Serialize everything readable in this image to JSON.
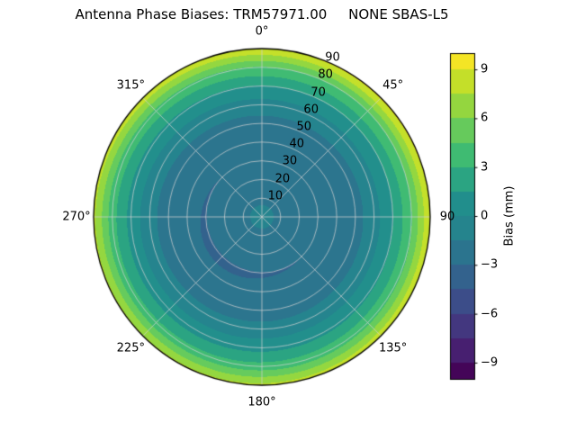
{
  "figure": {
    "background": "#ffffff"
  },
  "chart_data": {
    "type": "heatmap",
    "projection": "polar",
    "title": "Antenna Phase Biases: TRM57971.00     NONE SBAS-L5",
    "grid": true,
    "azimuth_ticks": [
      {
        "angle_deg": 0,
        "label": "0°"
      },
      {
        "angle_deg": 45,
        "label": "45°"
      },
      {
        "angle_deg": 90,
        "label": "90"
      },
      {
        "angle_deg": 135,
        "label": "135°"
      },
      {
        "angle_deg": 180,
        "label": "180°"
      },
      {
        "angle_deg": 225,
        "label": "225°"
      },
      {
        "angle_deg": 270,
        "label": "270°"
      },
      {
        "angle_deg": 315,
        "label": "315°"
      }
    ],
    "radial_ticks": [
      {
        "zenith_deg": 10,
        "label": "10"
      },
      {
        "zenith_deg": 20,
        "label": "20"
      },
      {
        "zenith_deg": 30,
        "label": "30"
      },
      {
        "zenith_deg": 40,
        "label": "40"
      },
      {
        "zenith_deg": 50,
        "label": "50"
      },
      {
        "zenith_deg": 60,
        "label": "60"
      },
      {
        "zenith_deg": 70,
        "label": "70"
      },
      {
        "zenith_deg": 80,
        "label": "80"
      },
      {
        "zenith_deg": 90,
        "label": "90"
      }
    ],
    "radial_label_azimuth_deg": 22.5,
    "radial_range": [
      0,
      90
    ],
    "colorbar": {
      "label": "Bias (mm)",
      "ticks": [
        {
          "value": 9,
          "label": "9"
        },
        {
          "value": 6,
          "label": "6"
        },
        {
          "value": 3,
          "label": "3"
        },
        {
          "value": 0,
          "label": "0"
        },
        {
          "value": -3,
          "label": "−3"
        },
        {
          "value": -6,
          "label": "−6"
        },
        {
          "value": -9,
          "label": "−9"
        }
      ],
      "vmin": -10,
      "vmax": 10,
      "level_step_mm": 1.5,
      "colormap": "viridis",
      "colormap_colors": [
        "#440154",
        "#482878",
        "#3e4989",
        "#31688e",
        "#26828e",
        "#21918c",
        "#35b779",
        "#6ece58",
        "#b5de2b",
        "#fde725"
      ]
    },
    "bias_field": {
      "zenith_deg": [
        0,
        10,
        20,
        30,
        40,
        50,
        60,
        70,
        80,
        90
      ],
      "mean_bias_mm": [
        -1.0,
        -1.8,
        -2.6,
        -3.0,
        -2.9,
        -2.2,
        -0.8,
        1.2,
        4.0,
        8.5
      ],
      "azimuthal_variation": {
        "amplitude_mm": 0.8,
        "peak_azimuth_deg": 45,
        "radial_power": 3
      }
    },
    "grid_color": "#d2d2d2"
  }
}
